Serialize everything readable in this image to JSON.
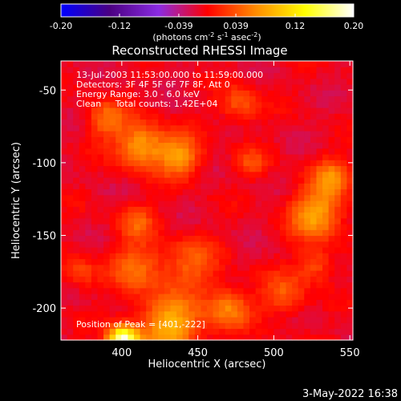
{
  "chart_data": {
    "type": "heatmap",
    "title": "Reconstructed RHESSI Image",
    "xlabel": "Heliocentric X (arcsec)",
    "ylabel": "Heliocentric Y (arcsec)",
    "xlim": [
      360,
      552
    ],
    "ylim": [
      -222,
      -30
    ],
    "x_ticks": [
      400,
      450,
      500,
      550
    ],
    "y_ticks": [
      -50,
      -100,
      -150,
      -200
    ],
    "colorbar": {
      "ticks": [
        -0.2,
        -0.12,
        -0.039,
        0.039,
        0.12,
        0.2
      ],
      "tick_labels": [
        "-0.20",
        "-0.12",
        "-0.039",
        "0.039",
        "0.12",
        "0.20"
      ],
      "range": [
        -0.2,
        0.2
      ],
      "units_prefix": "(photons cm",
      "units_sup1": "-2",
      "units_mid": " s",
      "units_sup2": "-1",
      "units_mid2": " asec",
      "units_sup3": "-2",
      "units_suffix": ")",
      "colors": [
        "#0000ff",
        "#4b0082",
        "#8a2be2",
        "#ff0000",
        "#ff8c00",
        "#ffff00",
        "#ffffff"
      ]
    },
    "annotations": [
      "13-Jul-2003 11:53:00.000 to 11:59:00.000",
      "Detectors: 3F 4F 5F 6F 7F 8F, Att 0",
      "Energy Range: 3.0 - 6.0 keV",
      "Clean     Total counts: 1.42E+04"
    ],
    "peak_label": "Position of Peak = [401,-222]",
    "peak_position": [
      401,
      -222
    ],
    "background_level": -0.01,
    "emission_components": [
      {
        "x": 401,
        "y": -222,
        "peak": 0.2,
        "sigma": 7
      },
      {
        "x": 432,
        "y": -212,
        "peak": 0.1,
        "sigma": 14
      },
      {
        "x": 470,
        "y": -200,
        "peak": 0.07,
        "sigma": 10
      },
      {
        "x": 410,
        "y": -172,
        "peak": 0.06,
        "sigma": 12
      },
      {
        "x": 445,
        "y": -170,
        "peak": 0.05,
        "sigma": 13
      },
      {
        "x": 507,
        "y": -190,
        "peak": 0.05,
        "sigma": 10
      },
      {
        "x": 413,
        "y": -88,
        "peak": 0.09,
        "sigma": 11
      },
      {
        "x": 438,
        "y": -95,
        "peak": 0.08,
        "sigma": 10
      },
      {
        "x": 390,
        "y": -70,
        "peak": 0.06,
        "sigma": 9
      },
      {
        "x": 478,
        "y": -60,
        "peak": 0.05,
        "sigma": 9
      },
      {
        "x": 410,
        "y": -140,
        "peak": 0.05,
        "sigma": 8
      },
      {
        "x": 528,
        "y": -135,
        "peak": 0.09,
        "sigma": 12
      },
      {
        "x": 538,
        "y": -110,
        "peak": 0.07,
        "sigma": 9
      },
      {
        "x": 527,
        "y": -170,
        "peak": 0.05,
        "sigma": 8
      },
      {
        "x": 485,
        "y": -100,
        "peak": 0.04,
        "sigma": 7
      },
      {
        "x": 372,
        "y": -175,
        "peak": 0.04,
        "sigma": 8
      }
    ],
    "grid": false
  },
  "footer": {
    "date_stamp": "3-May-2022 16:38"
  }
}
